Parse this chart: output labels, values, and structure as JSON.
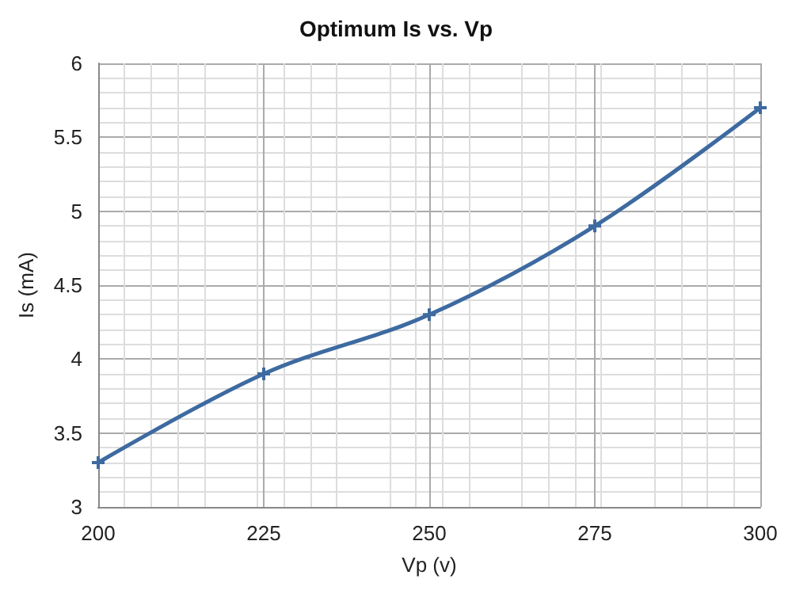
{
  "chart_data": {
    "type": "line",
    "title": "Optimum Is vs. Vp",
    "xlabel": "Vp (v)",
    "ylabel": "Is (mA)",
    "x": [
      200,
      225,
      250,
      275,
      300
    ],
    "series": [
      {
        "color": "#3d6aa0",
        "values": [
          3.3,
          3.9,
          4.3,
          4.9,
          5.7
        ]
      }
    ],
    "xlim": [
      200,
      300
    ],
    "xticks": [
      200,
      225,
      250,
      275,
      300
    ],
    "ylim": [
      3,
      6
    ],
    "yticks": [
      3,
      3.5,
      4,
      4.5,
      5,
      5.5,
      6
    ],
    "grid": true,
    "marker": "cross",
    "line_style": "solid"
  }
}
